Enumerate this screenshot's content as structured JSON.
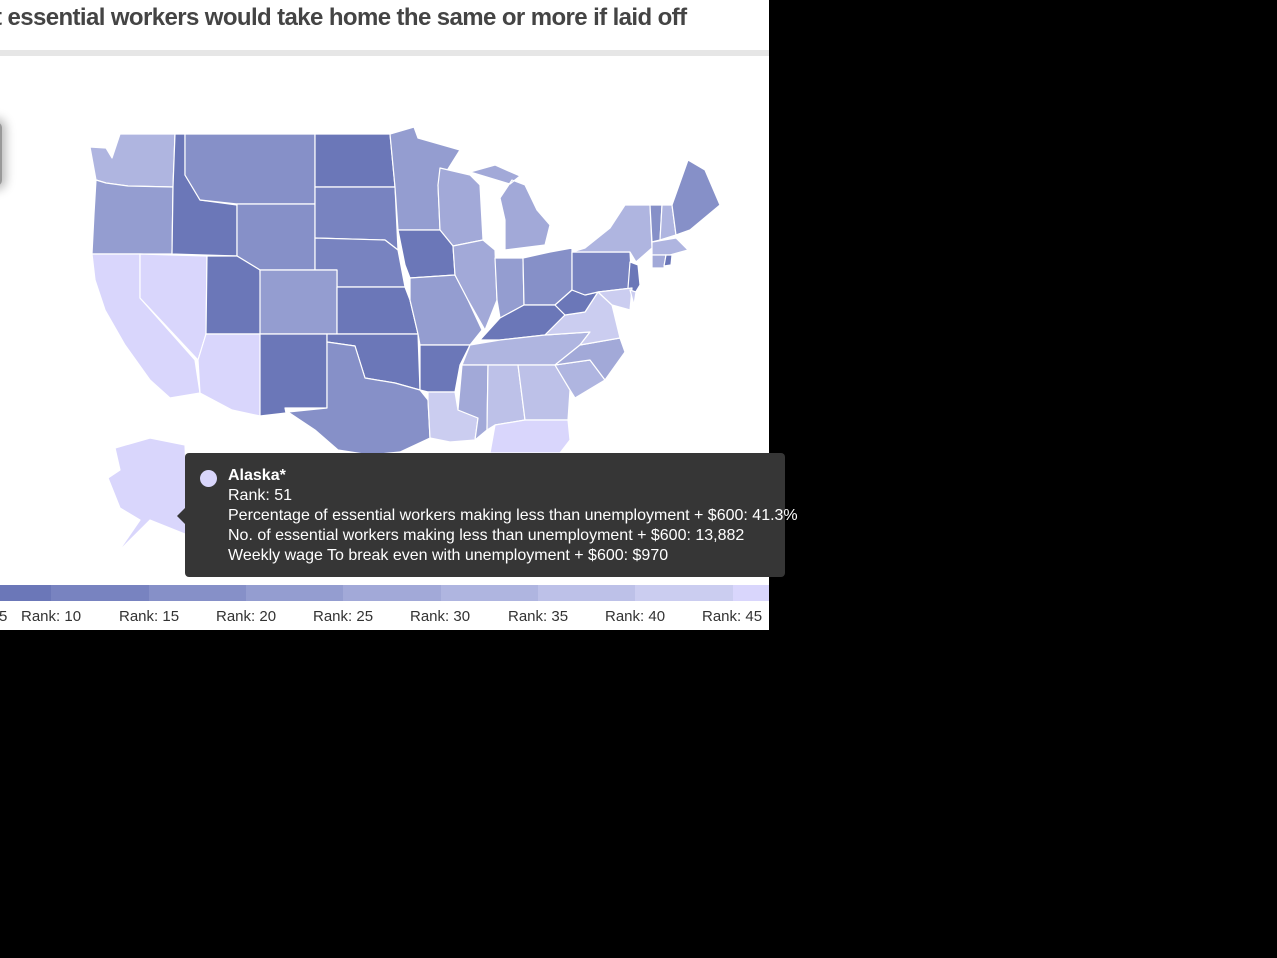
{
  "title": "t essential workers would take home the same or more if laid off",
  "colors": {
    "r1": "#6b77b8",
    "r2": "#7883c0",
    "r3": "#8690c8",
    "r4": "#949dd0",
    "r5": "#a2a9d8",
    "r6": "#afb5e0",
    "r7": "#bdc1e8",
    "r8": "#cbcdf0",
    "r9": "#d9d6fc"
  },
  "tooltip": {
    "state": "Alaska*",
    "rank": "Rank: 51",
    "percentage": "Percentage of essential workers making less than unemployment + $600: 41.3%",
    "count": "No. of essential workers making less than unemployment + $600: 13,882",
    "wage": "Weekly wage To break even with unemployment + $600: $970"
  },
  "legend": {
    "labels": [
      "5",
      "Rank: 10",
      "Rank: 15",
      "Rank: 20",
      "Rank: 25",
      "Rank: 30",
      "Rank: 35",
      "Rank: 40",
      "Rank: 45"
    ]
  }
}
